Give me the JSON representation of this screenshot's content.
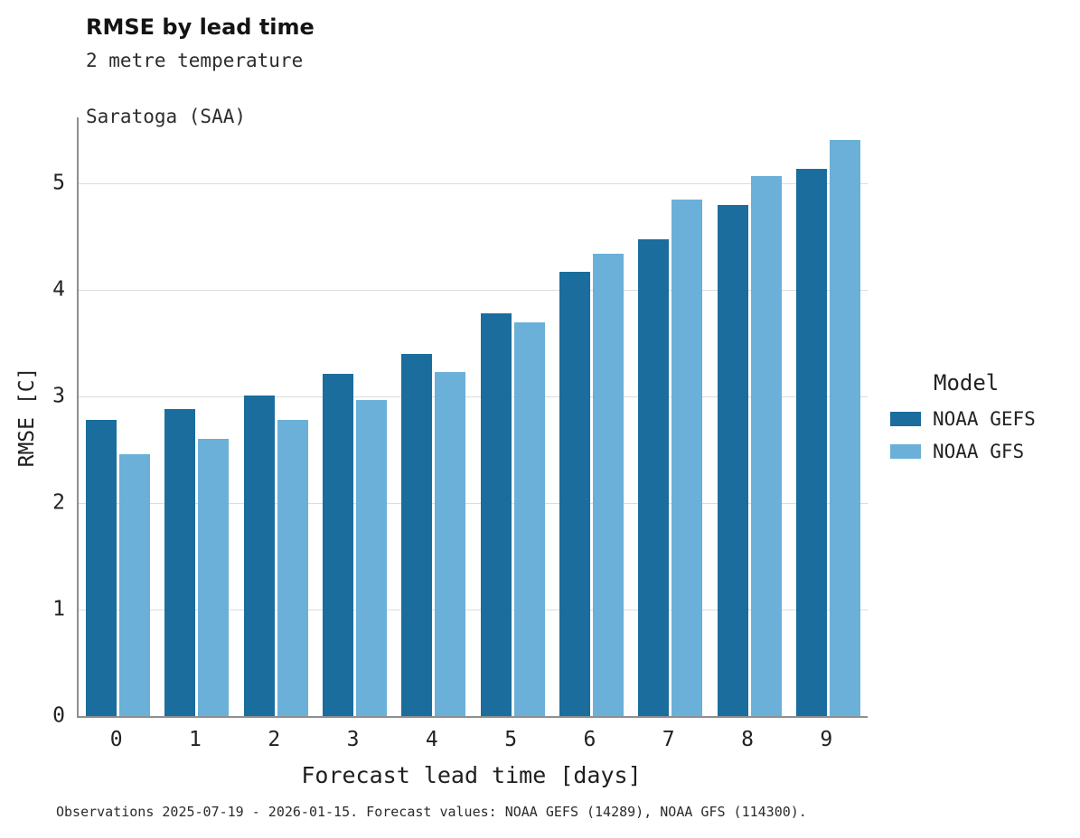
{
  "title": "RMSE by lead time",
  "subtitle_line1": "2 metre temperature",
  "subtitle_line2": "Saratoga (SAA)",
  "xlabel": "Forecast lead time [days]",
  "ylabel": "RMSE [C]",
  "caption": "Observations 2025-07-19 - 2026-01-15. Forecast values: NOAA GEFS (14289), NOAA GFS (114300).",
  "legend": {
    "title": "Model",
    "entries": [
      {
        "label": "NOAA GEFS",
        "color": "#1a6d9d"
      },
      {
        "label": "NOAA GFS",
        "color": "#6ab0d8"
      }
    ]
  },
  "chart_data": {
    "type": "bar",
    "title": "RMSE by lead time",
    "subtitle": "2 metre temperature — Saratoga (SAA)",
    "xlabel": "Forecast lead time [days]",
    "ylabel": "RMSE [C]",
    "categories": [
      0,
      1,
      2,
      3,
      4,
      5,
      6,
      7,
      8,
      9
    ],
    "series": [
      {
        "name": "NOAA GEFS",
        "color": "#1a6d9d",
        "values": [
          2.78,
          2.88,
          3.01,
          3.21,
          3.4,
          3.78,
          4.17,
          4.48,
          4.8,
          5.14
        ]
      },
      {
        "name": "NOAA GFS",
        "color": "#6ab0d8",
        "values": [
          2.46,
          2.6,
          2.78,
          2.97,
          3.23,
          3.7,
          4.34,
          4.85,
          5.07,
          5.41
        ]
      }
    ],
    "ylim": [
      0,
      5.62
    ],
    "yticks": [
      0,
      1,
      2,
      3,
      4,
      5
    ],
    "grid": true,
    "legend_position": "right"
  }
}
